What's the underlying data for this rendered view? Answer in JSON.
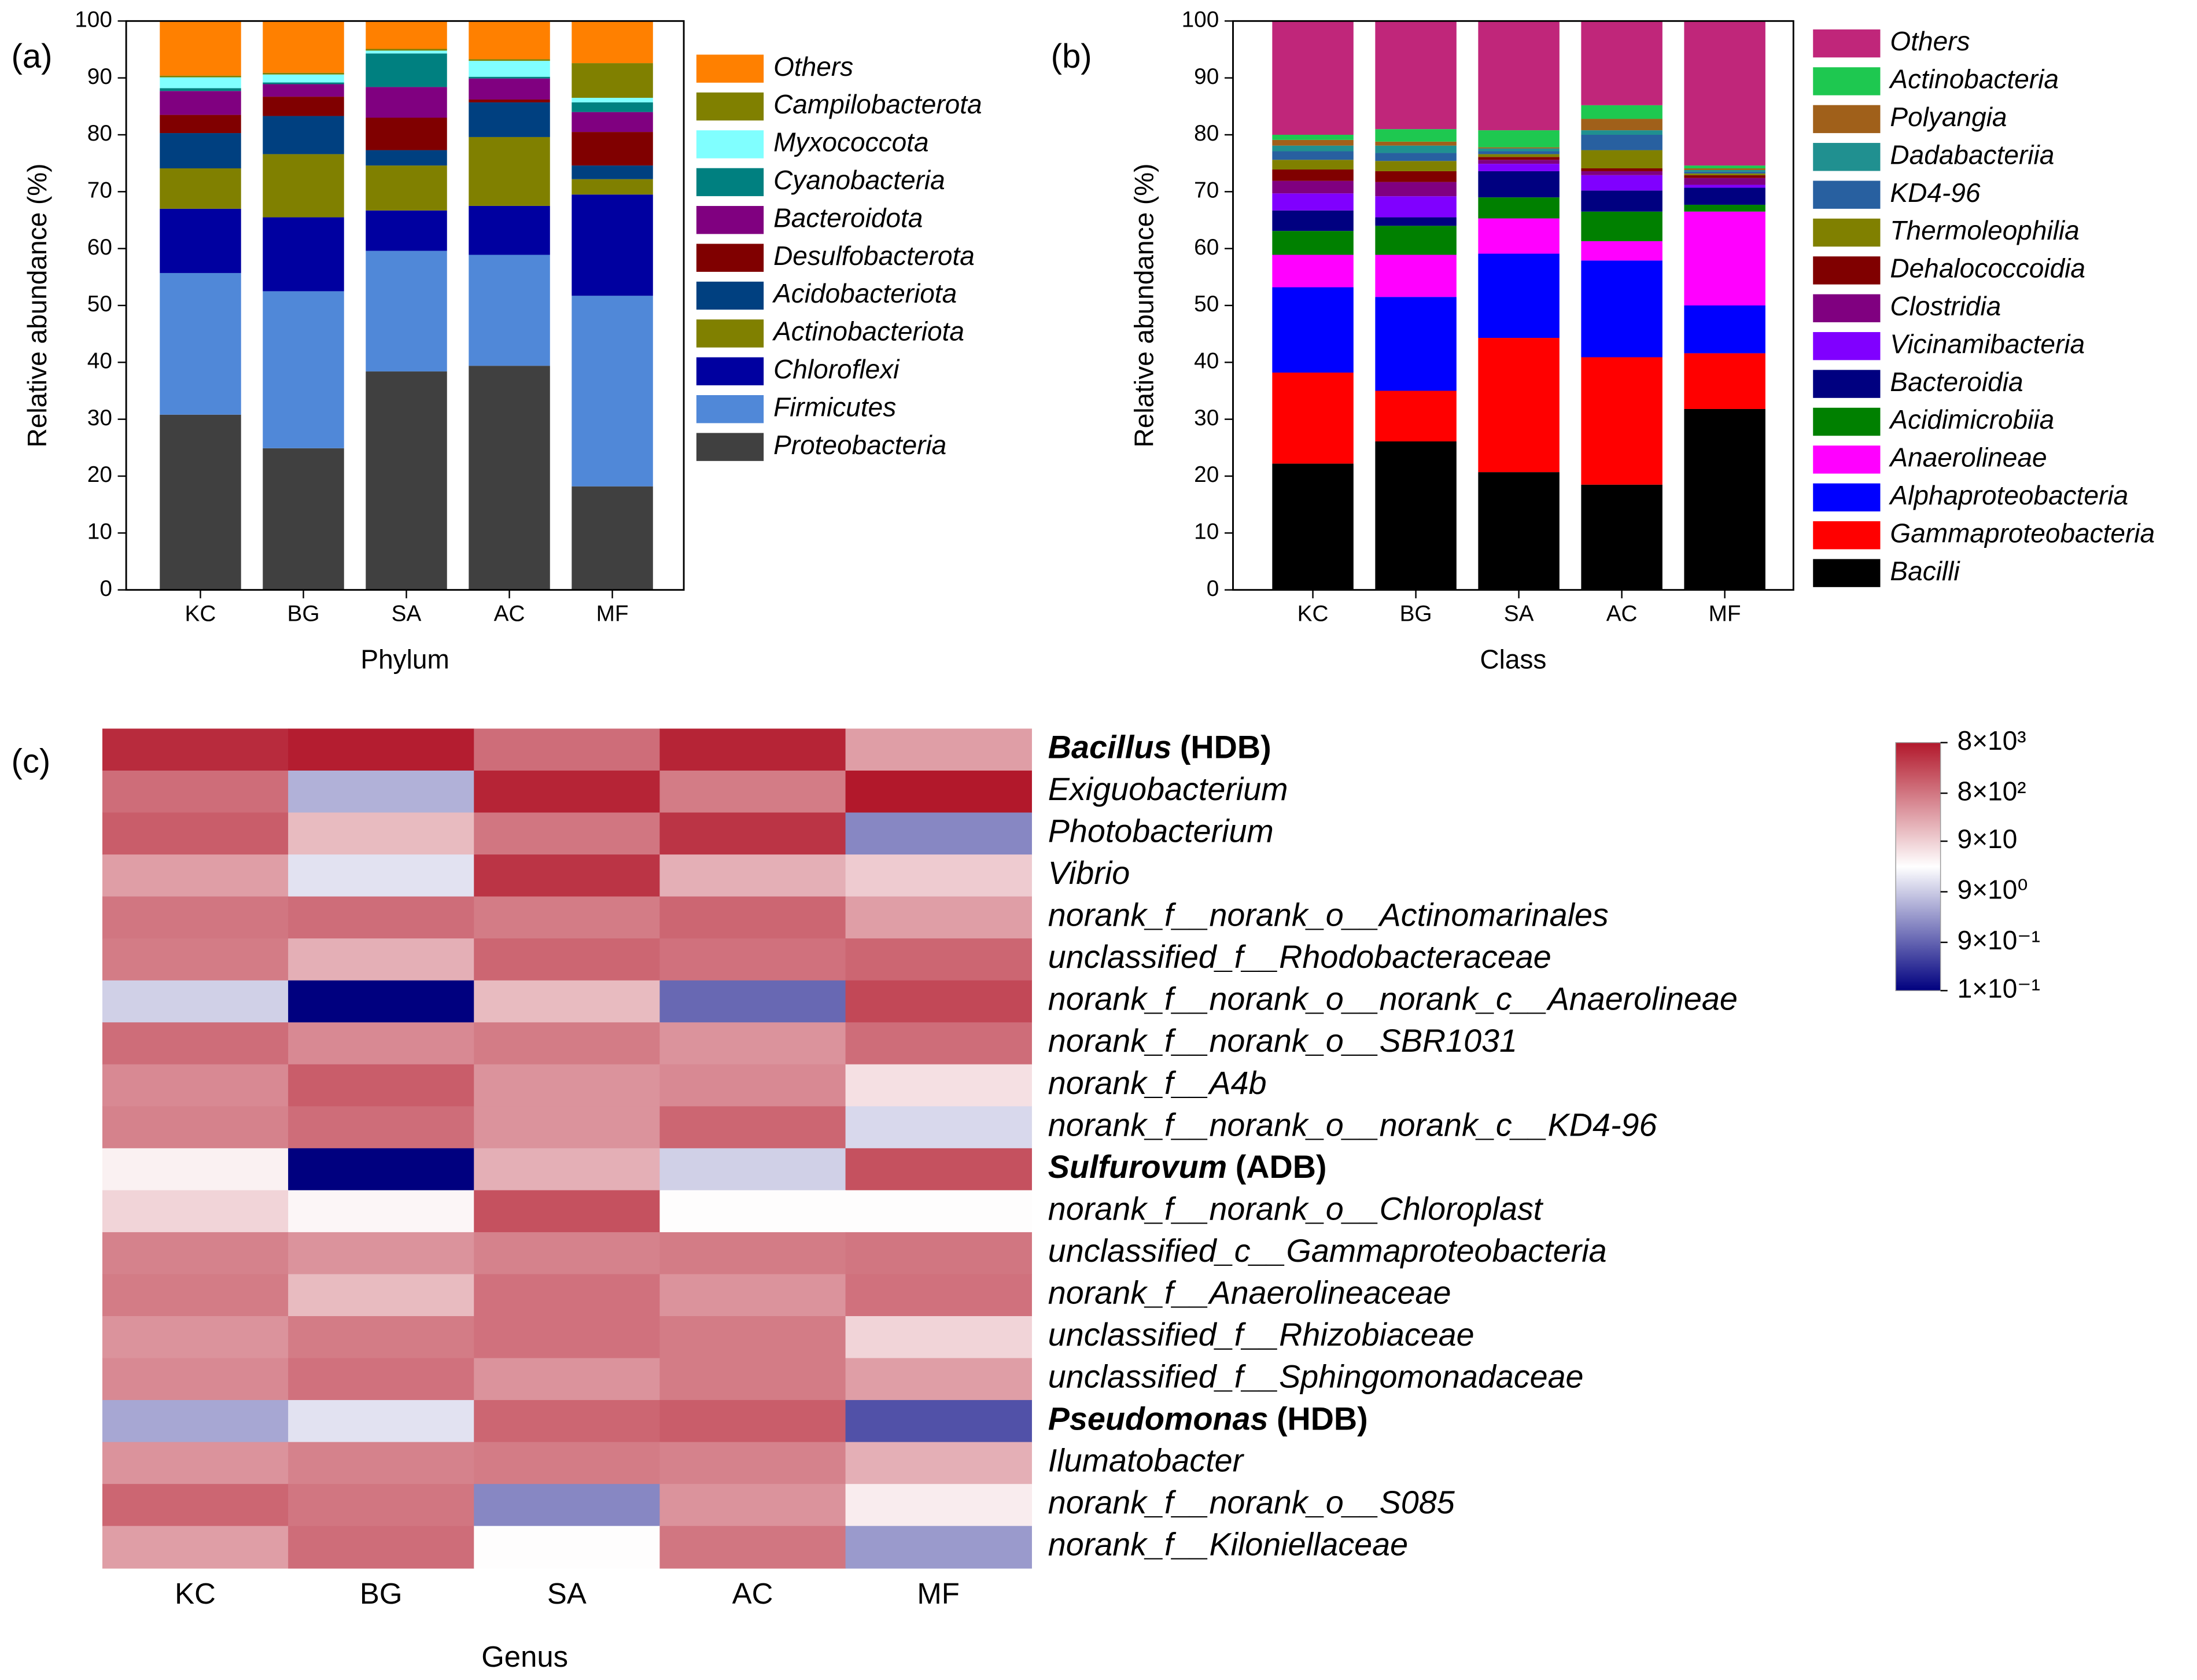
{
  "chart_data": [
    {
      "type": "bar",
      "stacked": true,
      "panel_label": "(a)",
      "xlabel": "Phylum",
      "ylabel": "Relative abundance (%)",
      "categories": [
        "KC",
        "BG",
        "SA",
        "AC",
        "MF"
      ],
      "ylim": [
        0,
        100
      ],
      "yticks": [
        0,
        10,
        20,
        30,
        40,
        50,
        60,
        70,
        80,
        90,
        100
      ],
      "series": [
        {
          "name": "Proteobacteria",
          "color": "#404040",
          "values": [
            30.8,
            24.9,
            38.4,
            39.4,
            18.2
          ]
        },
        {
          "name": "Firmicutes",
          "color": "#5088d8",
          "values": [
            24.9,
            27.6,
            21.2,
            19.5,
            33.5
          ]
        },
        {
          "name": "Chloroflexi",
          "color": "#0000a0",
          "values": [
            11.3,
            13.0,
            7.1,
            8.6,
            17.8
          ]
        },
        {
          "name": "Actinobacteriota",
          "color": "#808000",
          "values": [
            7.1,
            11.1,
            7.9,
            12.1,
            2.7
          ]
        },
        {
          "name": "Acidobacteriota",
          "color": "#004080",
          "values": [
            6.2,
            6.7,
            2.7,
            6.1,
            2.4
          ]
        },
        {
          "name": "Desulfobacterota",
          "color": "#800000",
          "values": [
            3.2,
            3.4,
            5.7,
            0.5,
            5.9
          ]
        },
        {
          "name": "Bacteroidota",
          "color": "#800080",
          "values": [
            4.2,
            2.2,
            5.4,
            3.7,
            3.5
          ]
        },
        {
          "name": "Cyanobacteria",
          "color": "#008080",
          "values": [
            0.5,
            0.3,
            5.9,
            0.3,
            1.7
          ]
        },
        {
          "name": "Myxococcota",
          "color": "#80ffff",
          "values": [
            1.9,
            1.4,
            0.5,
            2.8,
            0.8
          ]
        },
        {
          "name": "Campilobacterota",
          "color": "#808000",
          "values": [
            0.3,
            0.3,
            0.3,
            0.3,
            6.1
          ]
        },
        {
          "name": "Others",
          "color": "#ff8000",
          "values": [
            9.6,
            9.1,
            4.9,
            6.7,
            7.4
          ]
        }
      ]
    },
    {
      "type": "bar",
      "stacked": true,
      "panel_label": "(b)",
      "xlabel": "Class",
      "ylabel": "Relative abundance (%)",
      "categories": [
        "KC",
        "BG",
        "SA",
        "AC",
        "MF"
      ],
      "ylim": [
        0,
        100
      ],
      "yticks": [
        0,
        10,
        20,
        30,
        40,
        50,
        60,
        70,
        80,
        90,
        100
      ],
      "series": [
        {
          "name": "Bacilli",
          "color": "#000000",
          "values": [
            22.2,
            26.1,
            20.7,
            18.5,
            31.8
          ]
        },
        {
          "name": "Gammaproteobacteria",
          "color": "#ff0000",
          "values": [
            16.0,
            8.9,
            23.6,
            22.4,
            9.8
          ]
        },
        {
          "name": "Alphaproteobacteria",
          "color": "#0000ff",
          "values": [
            15.0,
            16.5,
            14.8,
            17.0,
            8.4
          ]
        },
        {
          "name": "Anaerolineae",
          "color": "#ff00ff",
          "values": [
            5.7,
            7.4,
            6.2,
            3.4,
            16.5
          ]
        },
        {
          "name": "Acidimicrobiia",
          "color": "#008000",
          "values": [
            4.2,
            5.1,
            3.7,
            5.2,
            1.2
          ]
        },
        {
          "name": "Bacteroidia",
          "color": "#000080",
          "values": [
            3.6,
            1.5,
            4.6,
            3.7,
            3.0
          ]
        },
        {
          "name": "Vicinamibacteria",
          "color": "#8000ff",
          "values": [
            3.0,
            3.7,
            1.3,
            2.7,
            0.5
          ]
        },
        {
          "name": "Clostridia",
          "color": "#800080",
          "values": [
            2.2,
            2.5,
            0.7,
            0.7,
            1.2
          ]
        },
        {
          "name": "Dehalococcoidia",
          "color": "#800000",
          "values": [
            2.0,
            1.9,
            0.5,
            0.5,
            0.5
          ]
        },
        {
          "name": "Thermoleophilia",
          "color": "#808000",
          "values": [
            1.7,
            1.8,
            0.5,
            3.2,
            0.3
          ]
        },
        {
          "name": "KD4-96",
          "color": "#2860a0",
          "values": [
            1.5,
            1.4,
            0.5,
            2.7,
            0.3
          ]
        },
        {
          "name": "Dadabacteriia",
          "color": "#209090",
          "values": [
            1.0,
            1.3,
            0.5,
            0.8,
            0.3
          ]
        },
        {
          "name": "Polyangia",
          "color": "#a0601a",
          "values": [
            1.0,
            0.7,
            0.2,
            2.0,
            0.3
          ]
        },
        {
          "name": "Actinobacteria",
          "color": "#1ec850",
          "values": [
            0.9,
            2.2,
            3.0,
            2.4,
            0.5
          ]
        },
        {
          "name": "Others",
          "color": "#c0267a",
          "values": [
            20.0,
            19.0,
            19.2,
            14.8,
            25.4
          ]
        }
      ]
    },
    {
      "type": "heatmap",
      "panel_label": "(c)",
      "xlabel": "Genus",
      "categories": [
        "KC",
        "BG",
        "SA",
        "AC",
        "MF"
      ],
      "rows": [
        {
          "name": "Bacillus",
          "tag": "(HDB)"
        },
        "Exiguobacterium",
        "Photobacterium",
        "Vibrio",
        "norank_f__norank_o__Actinomarinales",
        "unclassified_f__Rhodobacteraceae",
        "norank_f__norank_o__norank_c__Anaerolineae",
        "norank_f__norank_o__SBR1031",
        "norank_f__A4b",
        "norank_f__norank_o__norank_c__KD4-96",
        {
          "name": "Sulfurovum",
          "tag": "(ADB)"
        },
        "norank_f__norank_o__Chloroplast",
        "unclassified_c__Gammaproteobacteria",
        "norank_f__Anaerolineaceae",
        "unclassified_f__Rhizobiaceae",
        "unclassified_f__Sphingomonadaceae",
        {
          "name": "Pseudomonas",
          "tag": "(HDB)"
        },
        "Ilumatobacter",
        "norank_f__norank_o__S085",
        "norank_f__Kiloniellaceae"
      ],
      "values": [
        [
          5000,
          7000,
          1000,
          6000,
          300
        ],
        [
          1000,
          5,
          6000,
          700,
          8000
        ],
        [
          1500,
          150,
          800,
          4000,
          2
        ],
        [
          300,
          15,
          4000,
          200,
          100
        ],
        [
          800,
          1000,
          700,
          1200,
          300
        ],
        [
          700,
          200,
          1200,
          900,
          1200
        ],
        [
          10,
          0.1,
          150,
          1,
          2500
        ],
        [
          1000,
          500,
          700,
          400,
          1000
        ],
        [
          500,
          1500,
          400,
          500,
          60
        ],
        [
          600,
          1000,
          400,
          1200,
          12
        ],
        [
          40,
          0.1,
          200,
          10,
          2000
        ],
        [
          80,
          35,
          2000,
          30,
          30
        ],
        [
          600,
          400,
          600,
          700,
          800
        ],
        [
          700,
          150,
          900,
          400,
          900
        ],
        [
          400,
          700,
          900,
          700,
          80
        ],
        [
          500,
          900,
          400,
          700,
          300
        ],
        [
          4,
          15,
          1200,
          1500,
          0.6
        ],
        [
          400,
          600,
          700,
          600,
          200
        ],
        [
          1200,
          800,
          2,
          400,
          45
        ],
        [
          300,
          1000,
          30,
          800,
          3
        ]
      ],
      "zlim": [
        0.1,
        8000
      ],
      "zscale": "log",
      "colors": [
        "#00007f",
        "#ffffff",
        "#b2182b"
      ],
      "zticks": [
        {
          "value": 8000,
          "label": "8×10³"
        },
        {
          "value": 800,
          "label": "8×10²"
        },
        {
          "value": 90,
          "label": "9×10"
        },
        {
          "value": 9,
          "label": "9×10⁰"
        },
        {
          "value": 0.9,
          "label": "9×10⁻¹"
        },
        {
          "value": 0.1,
          "label": "1×10⁻¹"
        }
      ]
    }
  ]
}
